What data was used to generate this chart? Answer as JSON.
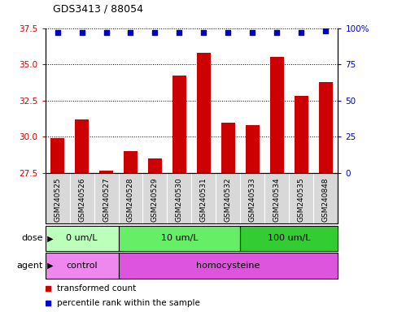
{
  "title": "GDS3413 / 88054",
  "samples": [
    "GSM240525",
    "GSM240526",
    "GSM240527",
    "GSM240528",
    "GSM240529",
    "GSM240530",
    "GSM240531",
    "GSM240532",
    "GSM240533",
    "GSM240534",
    "GSM240535",
    "GSM240848"
  ],
  "transformed_count": [
    29.9,
    31.2,
    27.7,
    29.0,
    28.5,
    34.2,
    35.8,
    31.0,
    30.8,
    35.5,
    32.8,
    33.8
  ],
  "percentile_rank": [
    97,
    97,
    97,
    97,
    97,
    97,
    97,
    97,
    97,
    97,
    97,
    98
  ],
  "ylim_left": [
    27.5,
    37.5
  ],
  "ylim_right": [
    0,
    100
  ],
  "yticks_left": [
    27.5,
    30.0,
    32.5,
    35.0,
    37.5
  ],
  "yticks_right": [
    0,
    25,
    50,
    75,
    100
  ],
  "bar_color": "#cc0000",
  "dot_color": "#0000cc",
  "dose_groups": [
    {
      "label": "0 um/L",
      "start": 0,
      "end": 3,
      "color": "#bbffbb"
    },
    {
      "label": "10 um/L",
      "start": 3,
      "end": 8,
      "color": "#66ee66"
    },
    {
      "label": "100 um/L",
      "start": 8,
      "end": 12,
      "color": "#33cc33"
    }
  ],
  "agent_groups": [
    {
      "label": "control",
      "start": 0,
      "end": 3,
      "color": "#ee88ee"
    },
    {
      "label": "homocysteine",
      "start": 3,
      "end": 12,
      "color": "#dd55dd"
    }
  ],
  "legend_items": [
    {
      "label": "transformed count",
      "color": "#cc0000"
    },
    {
      "label": "percentile rank within the sample",
      "color": "#0000cc"
    }
  ],
  "xlabel_dose": "dose",
  "xlabel_agent": "agent",
  "background_color": "#ffffff",
  "bar_bottom": 27.5,
  "xticklabel_bg": "#d8d8d8"
}
